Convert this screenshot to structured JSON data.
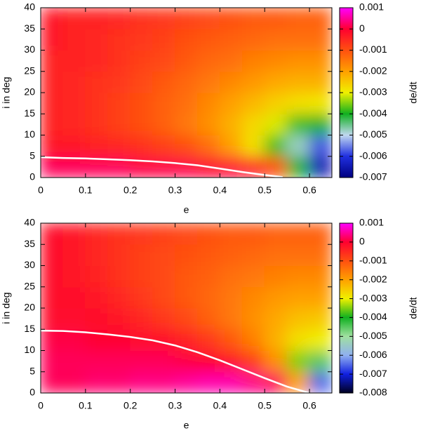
{
  "chart_data": [
    {
      "type": "heatmap",
      "xlabel": "e",
      "ylabel": "i in deg",
      "colorbar_label": "de/dt",
      "xlim": [
        0,
        0.65
      ],
      "ylim": [
        0,
        40
      ],
      "xticks": [
        0,
        0.1,
        0.2,
        0.3,
        0.4,
        0.5,
        0.6
      ],
      "yticks": [
        0,
        5,
        10,
        15,
        20,
        25,
        30,
        35,
        40
      ],
      "x": [
        0.025,
        0.075,
        0.125,
        0.175,
        0.225,
        0.275,
        0.325,
        0.375,
        0.425,
        0.475,
        0.525,
        0.575,
        0.625
      ],
      "y": [
        2.5,
        7.5,
        12.5,
        17.5,
        22.5,
        27.5,
        32.5,
        37.5
      ],
      "z": [
        [
          0.0002,
          0.0002,
          0.0002,
          0.0002,
          0.0001,
          0.0001,
          0.0001,
          0.0,
          0.0,
          -0.0003,
          -0.001,
          -0.004,
          -0.0065
        ],
        [
          -0.0003,
          -0.0003,
          -0.0004,
          -0.0005,
          -0.0006,
          -0.0008,
          -0.001,
          -0.0014,
          -0.002,
          -0.0028,
          -0.0038,
          -0.0048,
          -0.0058
        ],
        [
          -0.0004,
          -0.0005,
          -0.0006,
          -0.0008,
          -0.001,
          -0.0012,
          -0.0015,
          -0.0018,
          -0.0022,
          -0.0027,
          -0.0031,
          -0.0038,
          -0.004
        ],
        [
          -0.0004,
          -0.0005,
          -0.0006,
          -0.0008,
          -0.001,
          -0.0012,
          -0.0014,
          -0.0017,
          -0.002,
          -0.0023,
          -0.0026,
          -0.0028,
          -0.0029
        ],
        [
          -0.0004,
          -0.0005,
          -0.0006,
          -0.0007,
          -0.0009,
          -0.0011,
          -0.0013,
          -0.0015,
          -0.0017,
          -0.0019,
          -0.0021,
          -0.0022,
          -0.0022
        ],
        [
          -0.0004,
          -0.0004,
          -0.0005,
          -0.0006,
          -0.0008,
          -0.0009,
          -0.0011,
          -0.0013,
          -0.0014,
          -0.0016,
          -0.0017,
          -0.0018,
          -0.0018
        ],
        [
          -0.0003,
          -0.0004,
          -0.0005,
          -0.0006,
          -0.0007,
          -0.0008,
          -0.001,
          -0.0011,
          -0.0012,
          -0.0013,
          -0.0014,
          -0.0014,
          -0.0014
        ],
        [
          -0.0003,
          -0.0004,
          -0.0004,
          -0.0005,
          -0.0006,
          -0.0007,
          -0.0008,
          -0.0009,
          -0.001,
          -0.0011,
          -0.0011,
          -0.0012,
          -0.0012
        ]
      ],
      "zlim": [
        -0.007,
        0.001
      ],
      "zticks": [
        0.001,
        0,
        -0.001,
        -0.002,
        -0.003,
        -0.004,
        -0.005,
        -0.006,
        -0.007
      ],
      "colormap": [
        "#000080",
        "#2030e0",
        "#c0d8f0",
        "#10b020",
        "#f0f000",
        "#ffa000",
        "#ff5010",
        "#ff0030",
        "#ff00ff"
      ],
      "contour": {
        "color": "#ffffff",
        "x": [
          0,
          0.05,
          0.1,
          0.15,
          0.2,
          0.25,
          0.3,
          0.35,
          0.4,
          0.45,
          0.5,
          0.54
        ],
        "y": [
          4.8,
          4.6,
          4.5,
          4.3,
          4.1,
          3.8,
          3.4,
          2.9,
          2.1,
          1.3,
          0.6,
          0.1
        ]
      }
    },
    {
      "type": "heatmap",
      "xlabel": "e",
      "ylabel": "i in deg",
      "colorbar_label": "de/dt",
      "xlim": [
        0,
        0.65
      ],
      "ylim": [
        0,
        40
      ],
      "xticks": [
        0,
        0.1,
        0.2,
        0.3,
        0.4,
        0.5,
        0.6
      ],
      "yticks": [
        0,
        5,
        10,
        15,
        20,
        25,
        30,
        35,
        40
      ],
      "x": [
        0.025,
        0.075,
        0.125,
        0.175,
        0.225,
        0.275,
        0.325,
        0.375,
        0.425,
        0.475,
        0.525,
        0.575,
        0.625
      ],
      "y": [
        2.5,
        7.5,
        12.5,
        17.5,
        22.5,
        27.5,
        32.5,
        37.5
      ],
      "z": [
        [
          0.0002,
          0.0002,
          0.0003,
          0.0003,
          0.0004,
          0.0004,
          0.0005,
          0.0006,
          0.0006,
          0.0004,
          0.0002,
          -0.002,
          -0.0065
        ],
        [
          0.0002,
          0.0002,
          0.0002,
          0.0002,
          0.0002,
          0.0002,
          0.0001,
          0.0,
          -0.0003,
          -0.0008,
          -0.0018,
          -0.0035,
          -0.0045
        ],
        [
          0.0001,
          0.0001,
          0.0,
          0.0,
          -0.0001,
          -0.0002,
          -0.0004,
          -0.0007,
          -0.0011,
          -0.0016,
          -0.0022,
          -0.0028,
          -0.003
        ],
        [
          -0.0001,
          -0.0001,
          -0.0002,
          -0.0003,
          -0.0005,
          -0.0007,
          -0.0009,
          -0.0012,
          -0.0015,
          -0.0018,
          -0.0021,
          -0.0024,
          -0.0025
        ],
        [
          -0.0002,
          -0.0002,
          -0.0003,
          -0.0005,
          -0.0007,
          -0.0009,
          -0.0011,
          -0.0013,
          -0.0015,
          -0.0017,
          -0.0019,
          -0.002,
          -0.002
        ],
        [
          -0.0002,
          -0.0003,
          -0.0004,
          -0.0006,
          -0.0008,
          -0.0009,
          -0.0011,
          -0.0012,
          -0.0014,
          -0.0015,
          -0.0016,
          -0.0017,
          -0.0017
        ],
        [
          -0.0002,
          -0.0003,
          -0.0005,
          -0.0006,
          -0.0008,
          -0.0009,
          -0.001,
          -0.0011,
          -0.0012,
          -0.0013,
          -0.0014,
          -0.0014,
          -0.0014
        ],
        [
          -0.0002,
          -0.0003,
          -0.0005,
          -0.0006,
          -0.0007,
          -0.0008,
          -0.0009,
          -0.001,
          -0.0011,
          -0.0011,
          -0.0012,
          -0.0012,
          -0.0012
        ]
      ],
      "zlim": [
        -0.008,
        0.001
      ],
      "zticks": [
        0.001,
        0,
        -0.001,
        -0.002,
        -0.003,
        -0.004,
        -0.005,
        -0.006,
        -0.007,
        -0.008
      ],
      "colormap": [
        "#000020",
        "#1020e0",
        "#90b0f0",
        "#a0e0a0",
        "#10b020",
        "#f0f000",
        "#ffa000",
        "#ff5010",
        "#ff0030",
        "#ff00ff"
      ],
      "contour": {
        "color": "#ffffff",
        "x": [
          0,
          0.05,
          0.1,
          0.15,
          0.2,
          0.25,
          0.3,
          0.35,
          0.4,
          0.45,
          0.5,
          0.55,
          0.6
        ],
        "y": [
          14.7,
          14.6,
          14.3,
          13.8,
          13.2,
          12.4,
          11.2,
          9.6,
          7.7,
          5.6,
          3.5,
          1.5,
          0
        ]
      }
    }
  ]
}
